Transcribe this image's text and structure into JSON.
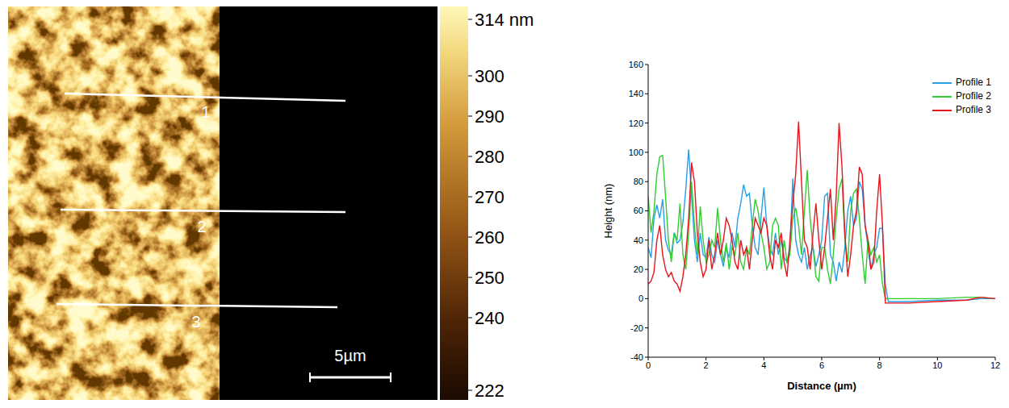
{
  "chart_data": [
    {
      "type": "image",
      "profile_labels": [
        "1",
        "2",
        "3"
      ],
      "scale_bar": "5µm",
      "colorbar": {
        "range": [
          222,
          314
        ],
        "ticks": [
          222,
          240,
          250,
          260,
          270,
          280,
          290,
          300,
          {
            "value": 314,
            "label": "314 nm"
          }
        ]
      }
    },
    {
      "type": "line",
      "x_label": "Distance (µm)",
      "y_label": "Height (nm)",
      "xlim": [
        0,
        12
      ],
      "ylim": [
        -40,
        160
      ],
      "xticks": [
        0,
        2,
        4,
        6,
        8,
        10,
        12
      ],
      "yticks": [
        -40,
        -20,
        0,
        20,
        40,
        60,
        80,
        100,
        120,
        140,
        160
      ],
      "grid": false,
      "legend": "top-right",
      "x": [
        0,
        0.1,
        0.2,
        0.3,
        0.4,
        0.5,
        0.6,
        0.7,
        0.8,
        0.9,
        1.0,
        1.1,
        1.2,
        1.3,
        1.4,
        1.5,
        1.6,
        1.7,
        1.8,
        1.9,
        2.0,
        2.1,
        2.2,
        2.3,
        2.4,
        2.5,
        2.6,
        2.7,
        2.8,
        2.9,
        3.0,
        3.1,
        3.2,
        3.3,
        3.4,
        3.5,
        3.6,
        3.7,
        3.8,
        3.9,
        4.0,
        4.1,
        4.2,
        4.3,
        4.4,
        4.5,
        4.6,
        4.7,
        4.8,
        4.9,
        5.0,
        5.1,
        5.2,
        5.3,
        5.4,
        5.5,
        5.6,
        5.7,
        5.8,
        5.9,
        6.0,
        6.1,
        6.2,
        6.3,
        6.4,
        6.5,
        6.6,
        6.7,
        6.8,
        6.9,
        7.0,
        7.1,
        7.2,
        7.3,
        7.4,
        7.5,
        7.6,
        7.7,
        7.8,
        7.9,
        8.0,
        8.1,
        8.2,
        8.3,
        9,
        10,
        11,
        11.5,
        12
      ],
      "series": [
        {
          "name": "Profile 1",
          "color": "#2b9fe6",
          "values": [
            35,
            28,
            55,
            64,
            55,
            68,
            40,
            33,
            30,
            45,
            38,
            40,
            52,
            75,
            102,
            70,
            40,
            25,
            45,
            30,
            28,
            42,
            30,
            25,
            40,
            30,
            22,
            35,
            28,
            45,
            35,
            55,
            65,
            78,
            70,
            72,
            50,
            35,
            30,
            55,
            76,
            50,
            35,
            30,
            45,
            30,
            40,
            28,
            25,
            35,
            82,
            40,
            30,
            25,
            35,
            20,
            30,
            35,
            22,
            30,
            40,
            70,
            72,
            30,
            25,
            12,
            25,
            18,
            35,
            60,
            70,
            50,
            55,
            80,
            75,
            50,
            35,
            20,
            30,
            35,
            48,
            48,
            10,
            -2,
            -2,
            -1,
            -1,
            0,
            0
          ]
        },
        {
          "name": "Profile 2",
          "color": "#33cc33",
          "values": [
            70,
            45,
            60,
            85,
            97,
            98,
            70,
            40,
            25,
            45,
            40,
            65,
            30,
            20,
            45,
            80,
            50,
            30,
            63,
            40,
            25,
            30,
            40,
            35,
            62,
            40,
            25,
            38,
            20,
            35,
            30,
            45,
            25,
            20,
            35,
            30,
            50,
            68,
            60,
            45,
            35,
            20,
            25,
            50,
            55,
            50,
            20,
            40,
            25,
            30,
            55,
            62,
            50,
            30,
            60,
            88,
            55,
            35,
            15,
            12,
            35,
            35,
            20,
            10,
            30,
            55,
            75,
            82,
            40,
            25,
            60,
            72,
            75,
            55,
            30,
            10,
            40,
            30,
            35,
            25,
            30,
            10,
            0,
            0,
            0,
            0,
            1,
            1,
            0
          ]
        },
        {
          "name": "Profile 3",
          "color": "#e8141c",
          "values": [
            10,
            12,
            18,
            40,
            50,
            30,
            20,
            15,
            18,
            12,
            10,
            5,
            15,
            30,
            55,
            93,
            80,
            45,
            25,
            15,
            20,
            40,
            20,
            30,
            45,
            30,
            40,
            55,
            50,
            40,
            25,
            20,
            40,
            30,
            35,
            20,
            40,
            55,
            50,
            45,
            55,
            50,
            30,
            20,
            40,
            35,
            45,
            25,
            15,
            40,
            65,
            85,
            121,
            80,
            40,
            35,
            20,
            45,
            65,
            40,
            20,
            35,
            55,
            75,
            40,
            70,
            120,
            90,
            45,
            15,
            30,
            50,
            60,
            90,
            85,
            50,
            40,
            20,
            25,
            60,
            85,
            50,
            -3,
            -3,
            -3,
            -2,
            -1,
            1,
            0
          ]
        }
      ]
    }
  ]
}
